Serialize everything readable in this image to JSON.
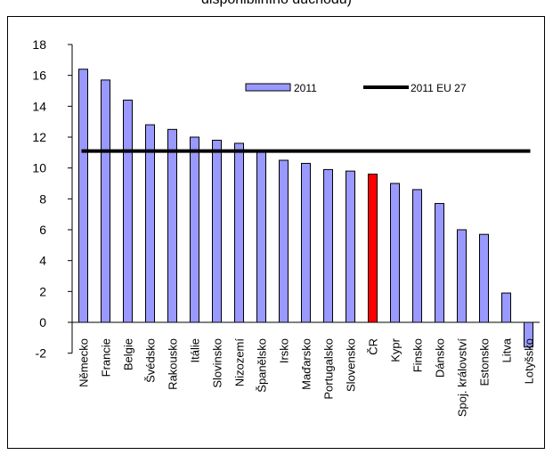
{
  "chart_data": {
    "type": "bar",
    "title": "disponibilního důchodu)",
    "categories": [
      "Německo",
      "Francie",
      "Belgie",
      "Švédsko",
      "Rakousko",
      "Itálie",
      "Slovinsko",
      "Nizozemí",
      "Španělsko",
      "Irsko",
      "Maďarsko",
      "Portugalsko",
      "Slovensko",
      "ČR",
      "Kypr",
      "Finsko",
      "Dánsko",
      "Spoj. království",
      "Estonsko",
      "Litva",
      "Lotyšsko"
    ],
    "series": [
      {
        "name": "2011",
        "type": "bar",
        "values": [
          16.4,
          15.7,
          14.4,
          12.8,
          12.5,
          12.0,
          11.8,
          11.6,
          11.1,
          10.5,
          10.3,
          9.9,
          9.8,
          9.6,
          9.0,
          8.6,
          7.7,
          6.0,
          5.7,
          1.9,
          -1.6
        ]
      },
      {
        "name": "2011 EU 27",
        "type": "line",
        "value": 11.1
      }
    ],
    "highlight_category": "ČR",
    "colors": {
      "bar": "#9999ff",
      "highlight": "#ff0000",
      "line": "#000000"
    },
    "yticks": [
      -2,
      0,
      2,
      4,
      6,
      8,
      10,
      12,
      14,
      16,
      18
    ],
    "ylim": [
      -2,
      18
    ],
    "legend": "top-right",
    "grid": false,
    "xlabel": "",
    "ylabel": ""
  }
}
